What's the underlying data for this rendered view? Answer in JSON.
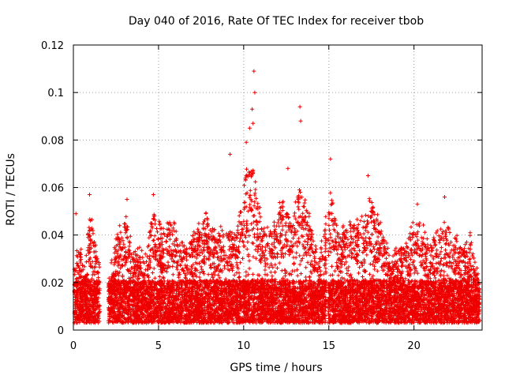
{
  "chart_data": {
    "type": "scatter",
    "title": "Day 040 of 2016, Rate Of TEC Index for receiver tbob",
    "xlabel": "GPS time / hours",
    "ylabel": "ROTI / TECUs",
    "xlim": [
      0,
      24
    ],
    "ylim": [
      0,
      0.12
    ],
    "xticks": [
      "0",
      "5",
      "10",
      "15",
      "20"
    ],
    "yticks": [
      "0",
      "0.02",
      "0.04",
      "0.06",
      "0.08",
      "0.1",
      "0.12"
    ],
    "grid": true,
    "series_color": "#ee0000",
    "marker": "plus",
    "gaps_hours": [
      [
        1.55,
        2.05
      ],
      [
        14.85,
        14.95
      ]
    ],
    "highlight_points": [
      {
        "x": 0.15,
        "y": 0.049
      },
      {
        "x": 0.95,
        "y": 0.057
      },
      {
        "x": 3.15,
        "y": 0.055
      },
      {
        "x": 4.7,
        "y": 0.057
      },
      {
        "x": 9.2,
        "y": 0.074
      },
      {
        "x": 10.15,
        "y": 0.079
      },
      {
        "x": 10.35,
        "y": 0.085
      },
      {
        "x": 10.55,
        "y": 0.087
      },
      {
        "x": 10.6,
        "y": 0.109
      },
      {
        "x": 10.65,
        "y": 0.1
      },
      {
        "x": 10.5,
        "y": 0.093
      },
      {
        "x": 12.6,
        "y": 0.068
      },
      {
        "x": 13.3,
        "y": 0.094
      },
      {
        "x": 13.35,
        "y": 0.088
      },
      {
        "x": 15.1,
        "y": 0.072
      },
      {
        "x": 17.3,
        "y": 0.065
      },
      {
        "x": 20.2,
        "y": 0.053
      },
      {
        "x": 21.8,
        "y": 0.056
      },
      {
        "x": 23.3,
        "y": 0.041
      }
    ],
    "envelope": [
      [
        0,
        0.02
      ],
      [
        0.3,
        0.038
      ],
      [
        0.6,
        0.025
      ],
      [
        1.0,
        0.05
      ],
      [
        1.4,
        0.03
      ],
      [
        2.1,
        0.022
      ],
      [
        2.6,
        0.04
      ],
      [
        3.1,
        0.045
      ],
      [
        3.6,
        0.03
      ],
      [
        4.2,
        0.035
      ],
      [
        4.7,
        0.05
      ],
      [
        5.2,
        0.04
      ],
      [
        5.8,
        0.045
      ],
      [
        6.5,
        0.035
      ],
      [
        7.2,
        0.04
      ],
      [
        7.8,
        0.048
      ],
      [
        8.4,
        0.04
      ],
      [
        9.0,
        0.042
      ],
      [
        9.6,
        0.04
      ],
      [
        10.1,
        0.065
      ],
      [
        10.5,
        0.07
      ],
      [
        11.0,
        0.048
      ],
      [
        11.6,
        0.04
      ],
      [
        12.3,
        0.055
      ],
      [
        12.8,
        0.045
      ],
      [
        13.3,
        0.06
      ],
      [
        13.8,
        0.05
      ],
      [
        14.4,
        0.03
      ],
      [
        15.1,
        0.055
      ],
      [
        15.6,
        0.04
      ],
      [
        16.3,
        0.045
      ],
      [
        17.0,
        0.045
      ],
      [
        17.4,
        0.055
      ],
      [
        18.0,
        0.045
      ],
      [
        18.6,
        0.03
      ],
      [
        19.2,
        0.035
      ],
      [
        19.8,
        0.04
      ],
      [
        20.2,
        0.05
      ],
      [
        20.8,
        0.035
      ],
      [
        21.5,
        0.04
      ],
      [
        22.0,
        0.045
      ],
      [
        22.7,
        0.035
      ],
      [
        23.3,
        0.037
      ],
      [
        23.8,
        0.02
      ]
    ]
  }
}
